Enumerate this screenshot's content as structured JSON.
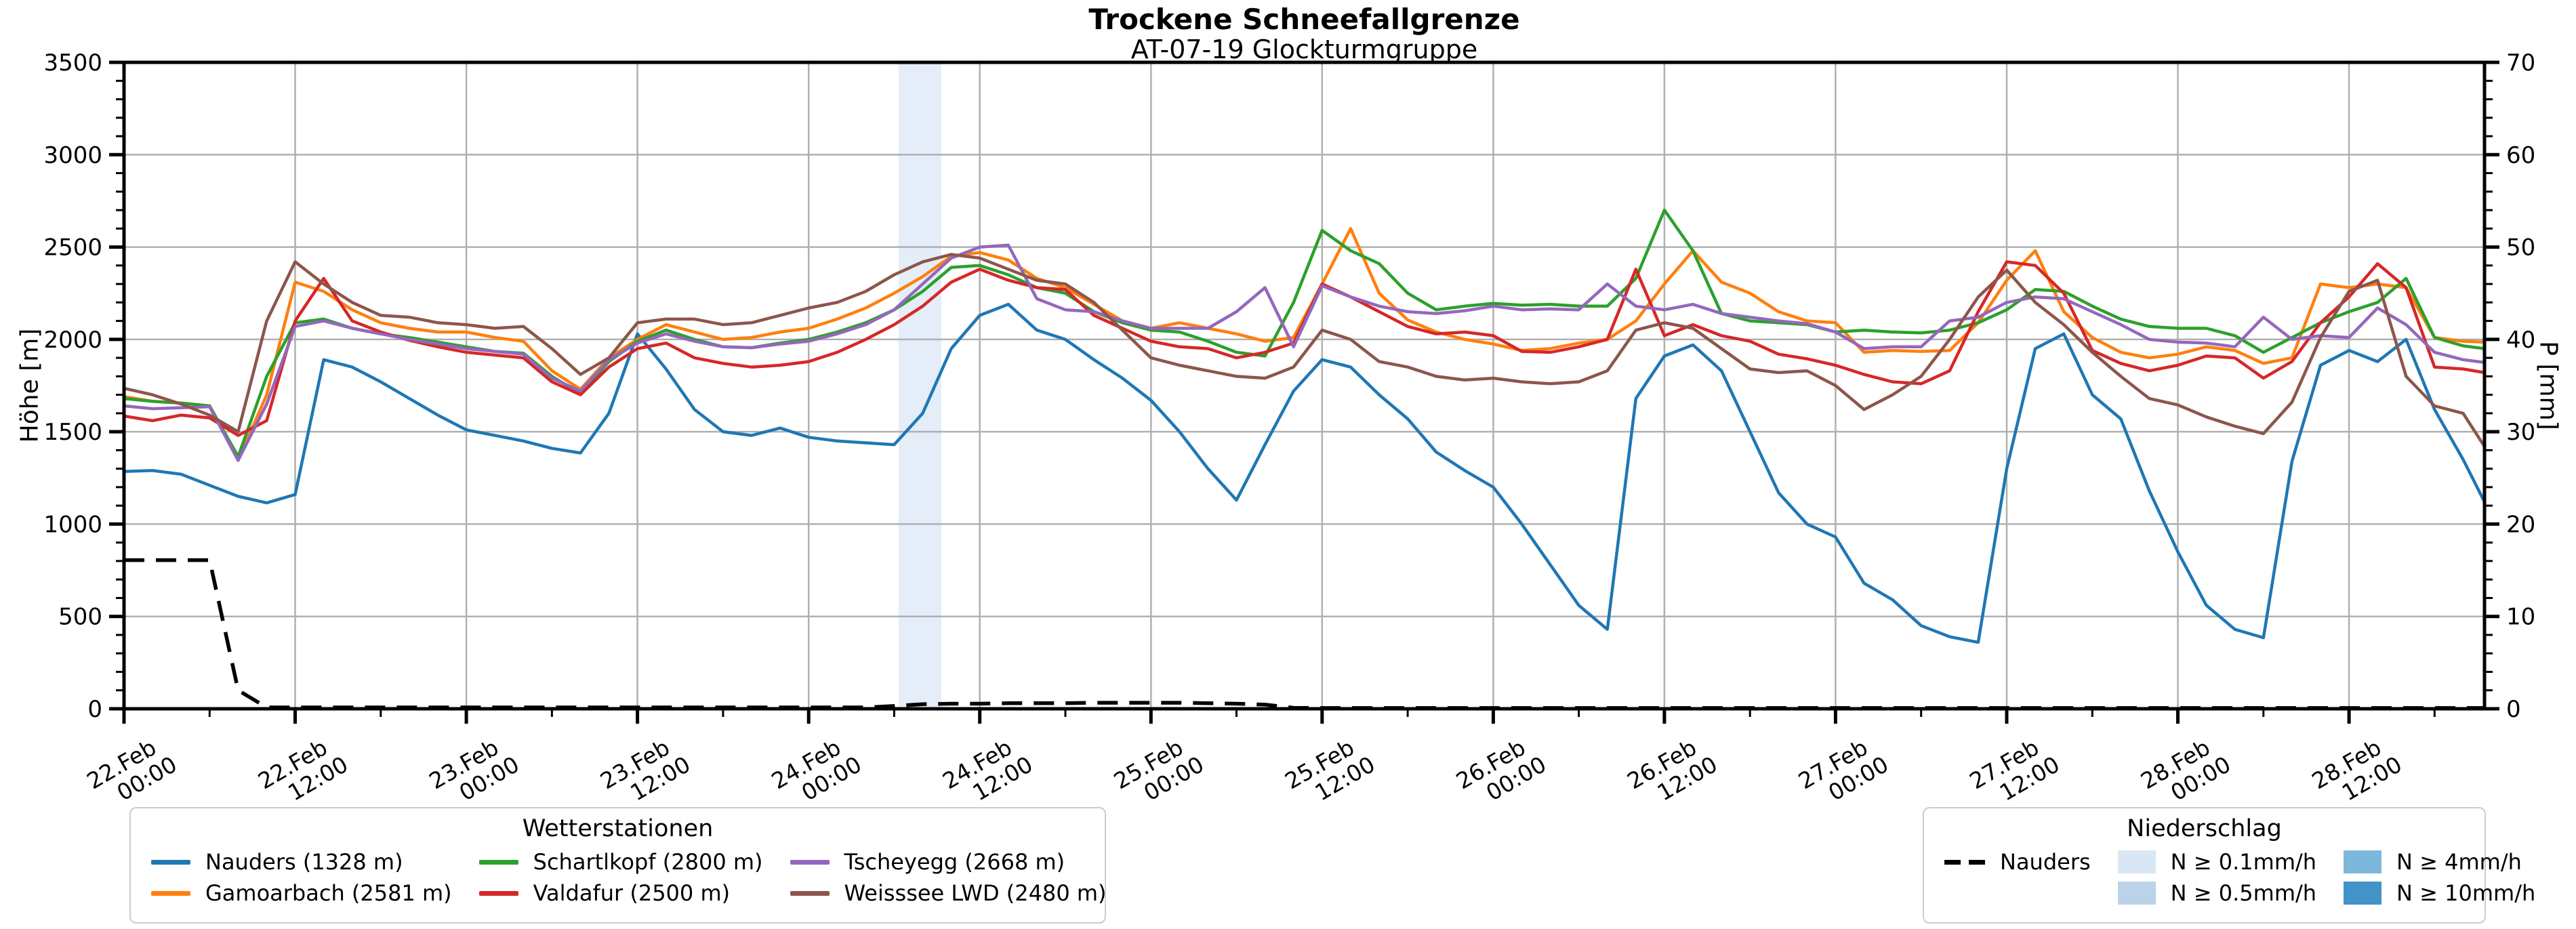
{
  "title": "Trockene Schneefallgrenze",
  "subtitle": "AT-07-19 Glockturmgruppe",
  "axes": {
    "left_label": "Höhe [m]",
    "right_label": "P [mm]",
    "left_ticks": [
      0,
      500,
      1000,
      1500,
      2000,
      2500,
      3000,
      3500
    ],
    "right_ticks": [
      0,
      10,
      20,
      30,
      40,
      50,
      60,
      70
    ],
    "x_ticks": [
      {
        "date": "22.Feb",
        "time": "00:00",
        "h": 0
      },
      {
        "date": "22.Feb",
        "time": "12:00",
        "h": 12
      },
      {
        "date": "23.Feb",
        "time": "00:00",
        "h": 24
      },
      {
        "date": "23.Feb",
        "time": "12:00",
        "h": 36
      },
      {
        "date": "24.Feb",
        "time": "00:00",
        "h": 48
      },
      {
        "date": "24.Feb",
        "time": "12:00",
        "h": 60
      },
      {
        "date": "25.Feb",
        "time": "00:00",
        "h": 72
      },
      {
        "date": "25.Feb",
        "time": "12:00",
        "h": 84
      },
      {
        "date": "26.Feb",
        "time": "00:00",
        "h": 96
      },
      {
        "date": "26.Feb",
        "time": "12:00",
        "h": 108
      },
      {
        "date": "27.Feb",
        "time": "00:00",
        "h": 120
      },
      {
        "date": "27.Feb",
        "time": "12:00",
        "h": 132
      },
      {
        "date": "28.Feb",
        "time": "00:00",
        "h": 144
      },
      {
        "date": "28.Feb",
        "time": "12:00",
        "h": 156
      }
    ]
  },
  "chart_data": {
    "type": "line",
    "title": "Trockene Schneefallgrenze",
    "subtitle": "AT-07-19 Glockturmgruppe",
    "xlabel": "",
    "ylabel": "Höhe [m]",
    "y2label": "P [mm]",
    "x_unit": "hours since 22.Feb 00:00",
    "x_range": [
      0,
      165.5
    ],
    "ylim": [
      0,
      3500
    ],
    "y2lim": [
      0,
      70
    ],
    "grid": true,
    "grid_color": "#b0b0b0",
    "precip_band": {
      "start_h": 54.3,
      "end_h": 57.3,
      "level": "N ≥ 0.1mm/h",
      "fill": "#e4edf8"
    },
    "hours": [
      0,
      2,
      4,
      6,
      8,
      10,
      12,
      14,
      16,
      18,
      20,
      22,
      24,
      26,
      28,
      30,
      32,
      34,
      36,
      38,
      40,
      42,
      44,
      46,
      48,
      50,
      52,
      54,
      56,
      58,
      60,
      62,
      64,
      66,
      68,
      70,
      72,
      74,
      76,
      78,
      80,
      82,
      84,
      86,
      88,
      90,
      92,
      94,
      96,
      98,
      100,
      102,
      104,
      106,
      108,
      110,
      112,
      114,
      116,
      118,
      120,
      122,
      124,
      126,
      128,
      130,
      132,
      134,
      136,
      138,
      140,
      142,
      144,
      146,
      148,
      150,
      152,
      154,
      156,
      158,
      160,
      162,
      164,
      165.5
    ],
    "series": [
      {
        "name": "Nauders (1328 m)",
        "color": "#1f77b4",
        "axis": "left",
        "style": "solid",
        "values": [
          1285,
          1290,
          1270,
          1210,
          1150,
          1115,
          1160,
          1890,
          1850,
          1770,
          1680,
          1590,
          1510,
          1480,
          1450,
          1410,
          1385,
          1600,
          2030,
          1840,
          1620,
          1500,
          1480,
          1520,
          1470,
          1450,
          1440,
          1430,
          1600,
          1950,
          2130,
          2190,
          2050,
          2000,
          1890,
          1790,
          1670,
          1500,
          1300,
          1130,
          1430,
          1720,
          1890,
          1850,
          1700,
          1570,
          1390,
          1290,
          1200,
          1000,
          780,
          560,
          430,
          1680,
          1910,
          1970,
          1830,
          1500,
          1170,
          1000,
          930,
          680,
          590,
          450,
          390,
          360,
          1300,
          1950,
          2030,
          1700,
          1570,
          1180,
          850,
          560,
          430,
          385,
          1340,
          1860,
          1940,
          1880,
          2000,
          1620,
          1350,
          1120
        ]
      },
      {
        "name": "Gamoarbach (2581 m)",
        "color": "#ff7f0e",
        "axis": "left",
        "style": "solid",
        "values": [
          1690,
          1665,
          1655,
          1640,
          1345,
          1700,
          2310,
          2260,
          2160,
          2090,
          2060,
          2040,
          2040,
          2010,
          1990,
          1830,
          1730,
          1900,
          2000,
          2080,
          2040,
          2000,
          2010,
          2040,
          2060,
          2110,
          2170,
          2250,
          2340,
          2450,
          2470,
          2430,
          2330,
          2280,
          2190,
          2100,
          2060,
          2090,
          2060,
          2030,
          1990,
          2010,
          2300,
          2600,
          2250,
          2105,
          2040,
          2000,
          1975,
          1940,
          1950,
          1980,
          2000,
          2100,
          2300,
          2480,
          2310,
          2250,
          2150,
          2100,
          2090,
          1930,
          1940,
          1935,
          1940,
          2090,
          2320,
          2480,
          2150,
          2010,
          1930,
          1900,
          1920,
          1960,
          1940,
          1870,
          1900,
          2300,
          2280,
          2300,
          2280,
          2010,
          1990,
          1985
        ]
      },
      {
        "name": "Schartlkopf (2800 m)",
        "color": "#2ca02c",
        "axis": "left",
        "style": "solid",
        "values": [
          1680,
          1665,
          1655,
          1640,
          1365,
          1800,
          2090,
          2110,
          2060,
          2030,
          2010,
          1985,
          1960,
          1935,
          1925,
          1800,
          1705,
          1880,
          1990,
          2050,
          2000,
          1960,
          1955,
          1980,
          2000,
          2040,
          2090,
          2160,
          2260,
          2390,
          2400,
          2350,
          2280,
          2250,
          2150,
          2090,
          2050,
          2040,
          1990,
          1930,
          1910,
          2200,
          2590,
          2480,
          2410,
          2250,
          2160,
          2180,
          2195,
          2185,
          2190,
          2180,
          2180,
          2330,
          2700,
          2480,
          2140,
          2100,
          2090,
          2080,
          2040,
          2050,
          2040,
          2035,
          2050,
          2090,
          2160,
          2270,
          2260,
          2180,
          2110,
          2070,
          2060,
          2060,
          2020,
          1930,
          2010,
          2090,
          2150,
          2200,
          2330,
          2010,
          1965,
          1950
        ]
      },
      {
        "name": "Valdafur (2500 m)",
        "color": "#d62728",
        "axis": "left",
        "style": "solid",
        "values": [
          1585,
          1560,
          1590,
          1575,
          1480,
          1560,
          2100,
          2330,
          2100,
          2040,
          1995,
          1960,
          1930,
          1915,
          1900,
          1770,
          1700,
          1850,
          1950,
          1980,
          1900,
          1870,
          1850,
          1860,
          1880,
          1930,
          2000,
          2080,
          2180,
          2310,
          2380,
          2320,
          2280,
          2270,
          2130,
          2060,
          1990,
          1960,
          1950,
          1900,
          1930,
          1980,
          2300,
          2230,
          2150,
          2070,
          2030,
          2040,
          2020,
          1935,
          1930,
          1960,
          2000,
          2380,
          2020,
          2080,
          2020,
          1990,
          1920,
          1895,
          1860,
          1810,
          1770,
          1760,
          1830,
          2150,
          2420,
          2400,
          2250,
          1940,
          1870,
          1830,
          1860,
          1910,
          1900,
          1790,
          1880,
          2090,
          2230,
          2410,
          2280,
          1850,
          1840,
          1820
        ]
      },
      {
        "name": "Tscheyegg (2668 m)",
        "color": "#9467bd",
        "axis": "left",
        "style": "solid",
        "values": [
          1640,
          1625,
          1630,
          1635,
          1345,
          1650,
          2070,
          2100,
          2060,
          2030,
          2000,
          1975,
          1950,
          1935,
          1920,
          1790,
          1720,
          1890,
          1980,
          2030,
          1990,
          1960,
          1955,
          1975,
          1990,
          2030,
          2080,
          2160,
          2300,
          2440,
          2500,
          2510,
          2220,
          2160,
          2150,
          2100,
          2060,
          2060,
          2060,
          2150,
          2280,
          1960,
          2290,
          2230,
          2180,
          2150,
          2140,
          2155,
          2180,
          2160,
          2165,
          2160,
          2300,
          2180,
          2160,
          2190,
          2140,
          2120,
          2100,
          2085,
          2040,
          1950,
          1960,
          1960,
          2100,
          2120,
          2200,
          2230,
          2220,
          2150,
          2080,
          2000,
          1985,
          1980,
          1960,
          2120,
          2000,
          2020,
          2010,
          2170,
          2080,
          1930,
          1890,
          1875
        ]
      },
      {
        "name": "Weisssee LWD (2480 m)",
        "color": "#8c564b",
        "axis": "left",
        "style": "solid",
        "values": [
          1735,
          1700,
          1650,
          1590,
          1500,
          2100,
          2420,
          2300,
          2200,
          2130,
          2120,
          2090,
          2080,
          2060,
          2070,
          1950,
          1810,
          1900,
          2090,
          2110,
          2110,
          2080,
          2090,
          2130,
          2170,
          2200,
          2260,
          2350,
          2420,
          2460,
          2440,
          2380,
          2320,
          2300,
          2200,
          2050,
          1900,
          1860,
          1830,
          1800,
          1790,
          1850,
          2050,
          2000,
          1880,
          1850,
          1800,
          1780,
          1790,
          1770,
          1760,
          1770,
          1830,
          2050,
          2090,
          2060,
          1950,
          1840,
          1820,
          1830,
          1750,
          1620,
          1700,
          1800,
          2000,
          2230,
          2375,
          2200,
          2080,
          1930,
          1800,
          1680,
          1645,
          1580,
          1530,
          1490,
          1660,
          2010,
          2260,
          2320,
          1800,
          1640,
          1600,
          1420
        ]
      },
      {
        "name": "Nauders",
        "color": "#000000",
        "axis": "right",
        "style": "dashed",
        "values": [
          16.1,
          16.1,
          16.1,
          16.1,
          2,
          0.15,
          0.15,
          0.15,
          0.15,
          0.15,
          0.15,
          0.15,
          0.15,
          0.15,
          0.15,
          0.15,
          0.15,
          0.15,
          0.15,
          0.15,
          0.15,
          0.15,
          0.15,
          0.15,
          0.15,
          0.15,
          0.15,
          0.3,
          0.5,
          0.55,
          0.55,
          0.6,
          0.6,
          0.6,
          0.65,
          0.65,
          0.65,
          0.65,
          0.6,
          0.55,
          0.45,
          0.1,
          0.08,
          0.08,
          0.08,
          0.08,
          0.08,
          0.08,
          0.08,
          0.08,
          0.08,
          0.08,
          0.08,
          0.08,
          0.08,
          0.08,
          0.08,
          0.08,
          0.08,
          0.08,
          0.08,
          0.08,
          0.08,
          0.08,
          0.08,
          0.08,
          0.08,
          0.08,
          0.08,
          0.08,
          0.08,
          0.08,
          0.08,
          0.08,
          0.08,
          0.08,
          0.08,
          0.08,
          0.08,
          0.08,
          0.08,
          0.08,
          0.08,
          0.08
        ]
      }
    ]
  },
  "legend_stations": {
    "title": "Wetterstationen",
    "items": [
      {
        "label": "Nauders (1328 m)",
        "color": "#1f77b4"
      },
      {
        "label": "Gamoarbach (2581 m)",
        "color": "#ff7f0e"
      },
      {
        "label": "Schartlkopf (2800 m)",
        "color": "#2ca02c"
      },
      {
        "label": "Valdafur (2500 m)",
        "color": "#d62728"
      },
      {
        "label": "Tscheyegg (2668 m)",
        "color": "#9467bd"
      },
      {
        "label": "Weisssee LWD (2480 m)",
        "color": "#8c564b"
      }
    ]
  },
  "legend_precip": {
    "title": "Niederschlag",
    "items": [
      {
        "type": "dashed-line",
        "label": "Nauders",
        "color": "#000000"
      },
      {
        "type": "spacer",
        "label": ""
      },
      {
        "type": "patch",
        "label": "N ≥ 0.1mm/h",
        "color": "#d9e7f4"
      },
      {
        "type": "patch",
        "label": "N ≥ 0.5mm/h",
        "color": "#bad3e8"
      },
      {
        "type": "patch",
        "label": "N ≥ 4mm/h",
        "color": "#7db8dc"
      },
      {
        "type": "patch",
        "label": "N ≥ 10mm/h",
        "color": "#4293c7"
      }
    ]
  }
}
